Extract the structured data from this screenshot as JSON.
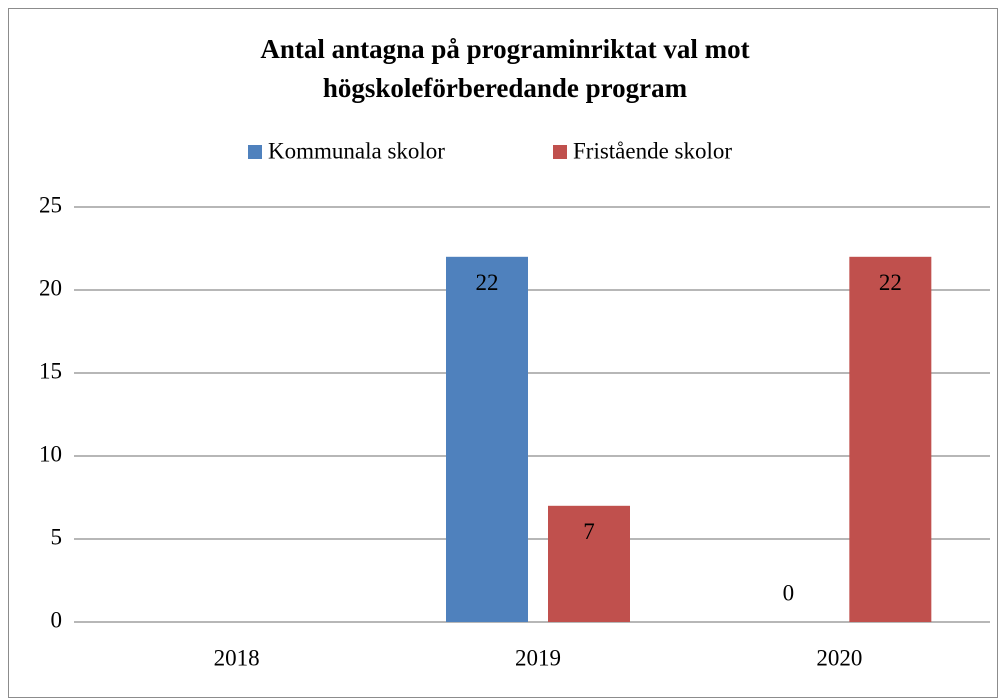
{
  "chart_data": {
    "type": "bar",
    "title": "Antal antagna på programinriktat val mot högskoleförberedande program",
    "categories": [
      "2018",
      "2019",
      "2020"
    ],
    "series": [
      {
        "name": "Kommunala skolor",
        "color": "#4f81bd",
        "values": [
          null,
          22,
          0
        ]
      },
      {
        "name": "Fristående skolor",
        "color": "#c0504d",
        "values": [
          null,
          7,
          22
        ]
      }
    ],
    "ylim": [
      0,
      25
    ],
    "yticks": [
      0,
      5,
      10,
      15,
      20,
      25
    ],
    "grid": true,
    "legend": "top"
  }
}
